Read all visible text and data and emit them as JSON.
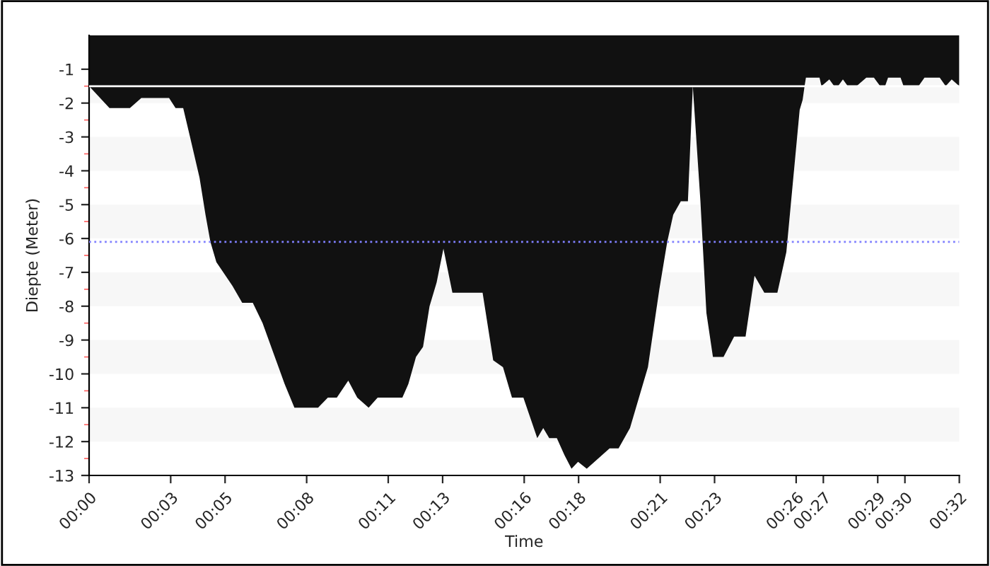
{
  "chart_data": {
    "type": "area",
    "xlabel": "Time",
    "ylabel": "Diepte (Meter)",
    "x": [
      0,
      0.75,
      1.5,
      1.92,
      2.94,
      3.18,
      3.46,
      3.74,
      4.06,
      4.28,
      4.46,
      4.68,
      5.27,
      5.63,
      6.02,
      6.38,
      6.92,
      7.19,
      7.55,
      8.42,
      8.78,
      9.11,
      9.53,
      9.86,
      10.28,
      10.61,
      11.52,
      11.74,
      12.02,
      12.28,
      12.52,
      12.78,
      13.03,
      13.36,
      14.47,
      14.86,
      15.22,
      15.55,
      15.97,
      16.48,
      16.7,
      16.92,
      17.2,
      17.48,
      17.74,
      17.98,
      18.3,
      19.14,
      19.47,
      19.89,
      20.55,
      20.97,
      21.26,
      21.48,
      21.76,
      22.02,
      22.2,
      22.48,
      22.7,
      22.94,
      23.33,
      23.72,
      24.14,
      24.47,
      24.83,
      25.31,
      25.64,
      26.13,
      26.24,
      26.31,
      26.36,
      26.86,
      26.93,
      27.22,
      27.4,
      27.54,
      27.72,
      27.9,
      28.22,
      28.58,
      28.86,
      29.09,
      29.27,
      29.38,
      29.84,
      29.95,
      30.5,
      30.72,
      31.28,
      31.5,
      31.72,
      32
    ],
    "series": [
      {
        "color": "#111111",
        "values": [
          -1.5,
          -2.15,
          -2.15,
          -1.85,
          -1.85,
          -2.15,
          -2.15,
          -3.1,
          -4.2,
          -5.3,
          -6.1,
          -6.7,
          -7.4,
          -7.9,
          -7.9,
          -8.5,
          -9.7,
          -10.3,
          -11,
          -11,
          -10.7,
          -10.7,
          -10.2,
          -10.7,
          -11,
          -10.7,
          -10.7,
          -10.3,
          -9.5,
          -9.2,
          -8,
          -7.3,
          -6.3,
          -7.6,
          -7.6,
          -9.6,
          -9.8,
          -10.7,
          -10.7,
          -11.9,
          -11.6,
          -11.9,
          -11.9,
          -12.4,
          -12.8,
          -12.6,
          -12.8,
          -12.2,
          -12.2,
          -11.6,
          -9.8,
          -7.5,
          -6.1,
          -5.3,
          -4.9,
          -4.9,
          -1.5,
          -4.9,
          -8.2,
          -9.5,
          -9.5,
          -8.9,
          -8.9,
          -7.1,
          -7.6,
          -7.6,
          -6.4,
          -2.2,
          -1.9,
          -1.5,
          -1.25,
          -1.25,
          -1.5,
          -1.3,
          -1.5,
          -1.5,
          -1.3,
          -1.5,
          -1.5,
          -1.25,
          -1.25,
          -1.5,
          -1.5,
          -1.25,
          -1.25,
          -1.5,
          -1.5,
          -1.25,
          -1.25,
          -1.5,
          -1.3,
          -1.5
        ]
      }
    ],
    "xlim": [
      0,
      32
    ],
    "xticks": [
      {
        "value": 0,
        "label": "00:00"
      },
      {
        "value": 3,
        "label": "00:03"
      },
      {
        "value": 5,
        "label": "00:05"
      },
      {
        "value": 8,
        "label": "00:08"
      },
      {
        "value": 11,
        "label": "00:11"
      },
      {
        "value": 13,
        "label": "00:13"
      },
      {
        "value": 16,
        "label": "00:16"
      },
      {
        "value": 18,
        "label": "00:18"
      },
      {
        "value": 21,
        "label": "00:21"
      },
      {
        "value": 23,
        "label": "00:23"
      },
      {
        "value": 26,
        "label": "00:26"
      },
      {
        "value": 27,
        "label": "00:27"
      },
      {
        "value": 29,
        "label": "00:29"
      },
      {
        "value": 30,
        "label": "00:30"
      },
      {
        "value": 32,
        "label": "00:32"
      }
    ],
    "ylim": [
      -13,
      0
    ],
    "yticks": [
      -1,
      {
        "value": -1.5,
        "label": null
      },
      -2,
      {
        "value": -2.5,
        "label": null
      },
      -3,
      {
        "value": -3.5,
        "label": null
      },
      -4,
      {
        "value": -4.5,
        "label": null
      },
      -5,
      {
        "value": -5.5,
        "label": null
      },
      -6,
      {
        "value": -6.5,
        "label": null
      },
      -7,
      {
        "value": -7.5,
        "label": null
      },
      -8,
      {
        "value": -8.5,
        "label": null
      },
      -9,
      {
        "value": -9.5,
        "label": null
      },
      -10,
      {
        "value": -10.5,
        "label": null
      },
      -11,
      {
        "value": -11.5,
        "label": null
      },
      -12,
      {
        "value": -12.5,
        "label": null
      },
      -13
    ],
    "ref_lines": [
      {
        "axis": "y",
        "value": -1.5,
        "color": "#ffffff",
        "line_style": "solid"
      },
      {
        "axis": "y",
        "value": -6.1,
        "color": "#8080ff",
        "line_style": "dotted"
      }
    ],
    "bands": [
      {
        "axis": "y",
        "from": -2,
        "to": -1,
        "color": "#f7f7f7"
      },
      {
        "axis": "y",
        "from": -4,
        "to": -3,
        "color": "#f7f7f7"
      },
      {
        "axis": "y",
        "from": -6,
        "to": -5,
        "color": "#f7f7f7"
      },
      {
        "axis": "y",
        "from": -8,
        "to": -7,
        "color": "#f7f7f7"
      },
      {
        "axis": "y",
        "from": -10,
        "to": -9,
        "color": "#f7f7f7"
      },
      {
        "axis": "y",
        "from": -12,
        "to": -11,
        "color": "#f7f7f7"
      }
    ]
  }
}
